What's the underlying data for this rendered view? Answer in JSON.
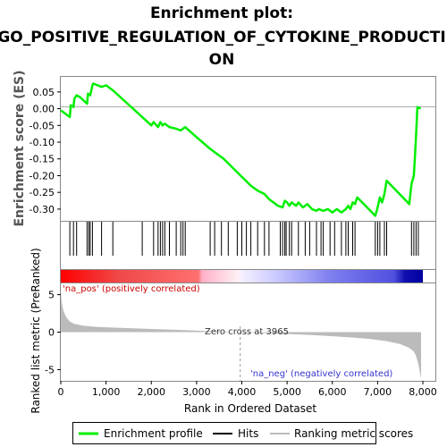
{
  "title_lines": [
    "Enrichment plot:",
    "GO_POSITIVE_REGULATION_OF_CYTOKINE_PRODUCTI",
    "ON"
  ],
  "colors": {
    "enrichment_line": "#00ee00",
    "hits": "#000000",
    "ranking": "#bbbbbb",
    "pos_text": "#cc0000",
    "neg_text": "#3333cc"
  },
  "chart_data": [
    {
      "type": "line",
      "name": "enrichment-profile",
      "ylabel": "Enrichment score (ES)",
      "xlim": [
        0,
        8000
      ],
      "ylim": [
        -0.335,
        0.095
      ],
      "y_ticks": [
        0.05,
        0.0,
        -0.05,
        -0.1,
        -0.15,
        -0.2,
        -0.25,
        -0.3
      ],
      "y_tick_labels": [
        "0.05",
        "0.00",
        "-0.05",
        "-0.10",
        "-0.15",
        "-0.20",
        "-0.25",
        "-0.30"
      ],
      "x": [
        0,
        200,
        220,
        280,
        300,
        350,
        420,
        500,
        580,
        600,
        650,
        700,
        720,
        900,
        1000,
        1150,
        1800,
        2000,
        2050,
        2150,
        2200,
        2250,
        2300,
        2400,
        2550,
        2650,
        2700,
        2750,
        3000,
        3300,
        3600,
        3900,
        4200,
        4350,
        4500,
        4600,
        4800,
        4900,
        4950,
        5000,
        5050,
        5100,
        5200,
        5250,
        5350,
        5450,
        5550,
        5650,
        5700,
        5800,
        5900,
        6000,
        6100,
        6200,
        6300,
        6350,
        6400,
        6450,
        6500,
        6550,
        6950,
        7000,
        7050,
        7100,
        7150,
        7200,
        7700,
        7750,
        7800,
        7820,
        7850,
        7880,
        7950
      ],
      "y": [
        -0.005,
        -0.025,
        0.01,
        0.005,
        0.03,
        0.04,
        0.035,
        0.025,
        0.015,
        0.045,
        0.04,
        0.07,
        0.075,
        0.065,
        0.07,
        0.055,
        -0.025,
        -0.05,
        -0.04,
        -0.055,
        -0.04,
        -0.05,
        -0.045,
        -0.055,
        -0.06,
        -0.065,
        -0.06,
        -0.055,
        -0.085,
        -0.12,
        -0.15,
        -0.19,
        -0.23,
        -0.245,
        -0.255,
        -0.27,
        -0.29,
        -0.295,
        -0.275,
        -0.28,
        -0.29,
        -0.28,
        -0.29,
        -0.28,
        -0.295,
        -0.285,
        -0.3,
        -0.305,
        -0.3,
        -0.305,
        -0.3,
        -0.31,
        -0.3,
        -0.31,
        -0.3,
        -0.29,
        -0.3,
        -0.28,
        -0.285,
        -0.265,
        -0.32,
        -0.295,
        -0.265,
        -0.28,
        -0.255,
        -0.215,
        -0.285,
        -0.225,
        -0.2,
        -0.155,
        -0.08,
        0.005,
        0.0
      ]
    },
    {
      "type": "scatter",
      "name": "hits",
      "x": [
        200,
        280,
        350,
        580,
        620,
        650,
        700,
        900,
        1150,
        1800,
        2050,
        2150,
        2200,
        2250,
        2300,
        2400,
        2550,
        2650,
        2700,
        2750,
        3300,
        3400,
        3550,
        3700,
        3900,
        4000,
        4100,
        4200,
        4350,
        4500,
        4600,
        4850,
        4900,
        4950,
        4980,
        5050,
        5100,
        5250,
        5400,
        5500,
        5650,
        5750,
        5800,
        5950,
        6050,
        6200,
        6300,
        6350,
        6450,
        6500,
        6950,
        7000,
        7050,
        7150,
        7200,
        7750,
        7800,
        7850,
        7900
      ]
    },
    {
      "type": "area",
      "name": "ranking-metric",
      "ylabel": "Ranked list metric (PreRanked)",
      "xlabel": "Rank in Ordered Dataset",
      "xlim": [
        0,
        8000
      ],
      "ylim": [
        -6.5,
        6.5
      ],
      "x_ticks": [
        0,
        1000,
        2000,
        3000,
        4000,
        5000,
        6000,
        7000,
        8000
      ],
      "x_tick_labels": [
        "0",
        "1,000",
        "2,000",
        "3,000",
        "4,000",
        "5,000",
        "6,000",
        "7,000",
        "8,000"
      ],
      "y_ticks": [
        5,
        0,
        -5
      ],
      "y_tick_labels": [
        "5",
        "0",
        "-5"
      ],
      "x": [
        0,
        20,
        60,
        120,
        200,
        300,
        500,
        800,
        1200,
        1600,
        2000,
        2400,
        2800,
        3200,
        3600,
        3965,
        4400,
        4800,
        5200,
        5600,
        6000,
        6400,
        6800,
        7200,
        7500,
        7700,
        7800,
        7850,
        7900,
        7930,
        7960
      ],
      "values": [
        5.5,
        4.0,
        2.8,
        2.0,
        1.4,
        1.1,
        0.85,
        0.7,
        0.6,
        0.5,
        0.42,
        0.35,
        0.25,
        0.15,
        0.07,
        0.0,
        -0.1,
        -0.2,
        -0.3,
        -0.4,
        -0.55,
        -0.7,
        -0.9,
        -1.2,
        -1.6,
        -2.1,
        -2.6,
        -3.2,
        -4.2,
        -5.2,
        -6.2
      ],
      "zero_cross_label": "Zero cross at 3965",
      "pos_label": "'na_pos' (positively correlated)",
      "neg_label": "'na_neg' (negatively correlated)"
    }
  ],
  "legend": {
    "enrichment_profile": "Enrichment profile",
    "hits": "Hits",
    "ranking": "Ranking metric scores"
  }
}
